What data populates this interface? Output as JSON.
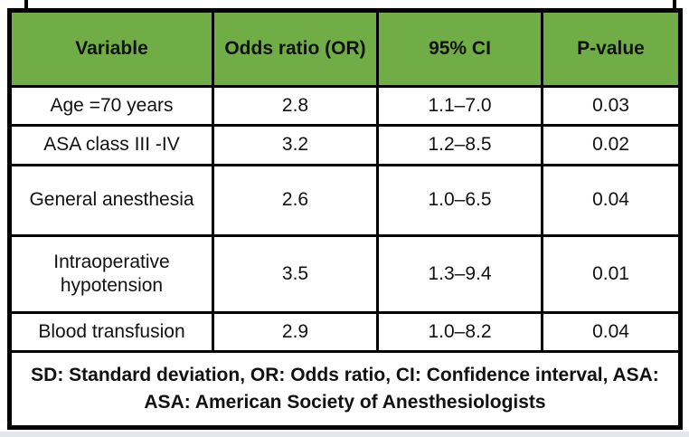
{
  "window": {
    "background_color": "#ffffff",
    "bottom_strip_color": "#e2e7ee"
  },
  "table": {
    "header_bg_color": "#70ad47",
    "border_color": "#000000",
    "headers": [
      "Variable",
      "Odds ratio (OR)",
      "95% CI",
      "P-value"
    ],
    "rows": [
      [
        "Age =70 years",
        "2.8",
        "1.1–7.0",
        "0.03"
      ],
      [
        "ASA class III -IV",
        "3.2",
        "1.2–8.5",
        "0.02"
      ],
      [
        "General anesthesia",
        "2.6",
        "1.0–6.5",
        "0.04"
      ],
      [
        "Intraoperative hypotension",
        "3.5",
        "1.3–9.4",
        "0.01"
      ],
      [
        "Blood transfusion",
        "2.9",
        "1.0–8.2",
        "0.04"
      ]
    ],
    "footnote_line1": "SD: Standard deviation, OR: Odds ratio, CI: Confidence interval, ASA:",
    "footnote_line2": "ASA: American Society of Anesthesiologists"
  },
  "chart_data": {
    "type": "table",
    "title": "",
    "columns": [
      "Variable",
      "Odds ratio (OR)",
      "95% CI",
      "P-value"
    ],
    "rows": [
      {
        "variable": "Age =70 years",
        "odds_ratio": 2.8,
        "ci_95": "1.1–7.0",
        "p_value": 0.03
      },
      {
        "variable": "ASA class III -IV",
        "odds_ratio": 3.2,
        "ci_95": "1.2–8.5",
        "p_value": 0.02
      },
      {
        "variable": "General anesthesia",
        "odds_ratio": 2.6,
        "ci_95": "1.0–6.5",
        "p_value": 0.04
      },
      {
        "variable": "Intraoperative hypotension",
        "odds_ratio": 3.5,
        "ci_95": "1.3–9.4",
        "p_value": 0.01
      },
      {
        "variable": "Blood transfusion",
        "odds_ratio": 2.9,
        "ci_95": "1.0–8.2",
        "p_value": 0.04
      }
    ],
    "footnote": "SD: Standard deviation, OR: Odds ratio, CI: Confidence interval, ASA: ASA: American Society of Anesthesiologists"
  }
}
